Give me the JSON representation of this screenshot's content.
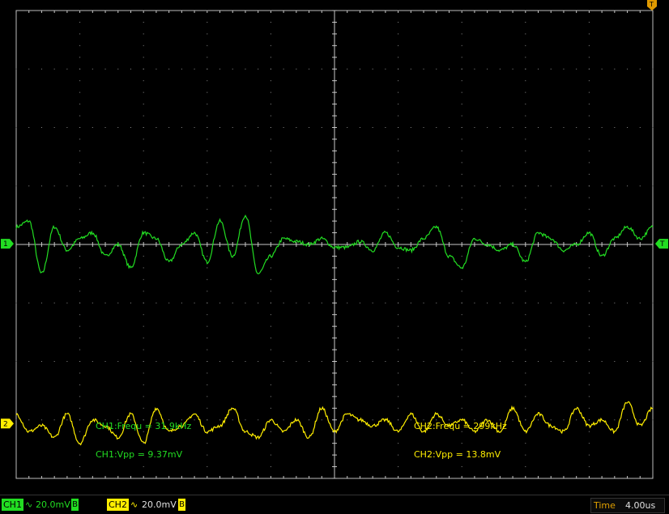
{
  "chart_data": {
    "type": "line",
    "title": "",
    "xlabel": "",
    "ylabel": "",
    "time_per_div": "4.00us",
    "x_divisions": 10,
    "y_divisions": 8,
    "grid": "dotted",
    "series": [
      {
        "name": "CH1",
        "color": "#22dd22",
        "marker_label": "1",
        "scale": "20.0mV",
        "coupling": "∿",
        "bw_limit": "B",
        "frequency": "31.9kHz",
        "vpp": "9.37mV",
        "x": [
          0,
          0.2,
          0.4,
          0.6,
          0.8,
          1,
          1.2,
          1.4,
          1.6,
          1.8,
          2,
          2.2,
          2.4,
          2.6,
          2.8,
          3,
          3.2,
          3.4,
          3.6,
          3.8,
          4,
          4.2,
          4.4,
          4.6,
          4.8,
          5,
          5.2,
          5.4,
          5.6,
          5.8,
          6,
          6.2,
          6.4,
          6.6,
          6.8,
          7,
          7.2,
          7.4,
          7.6,
          7.8,
          8,
          8.2,
          8.4,
          8.6,
          8.8,
          9,
          9.2,
          9.4,
          9.6,
          9.8,
          10
        ],
        "y": [
          0.3,
          0.4,
          -0.5,
          0.3,
          -0.1,
          0.1,
          0.2,
          -0.2,
          0.0,
          -0.4,
          0.2,
          0.1,
          -0.3,
          0.0,
          0.2,
          -0.3,
          0.4,
          -0.2,
          0.5,
          -0.5,
          -0.2,
          0.1,
          0.05,
          0.0,
          0.1,
          -0.05,
          -0.05,
          0.05,
          -0.1,
          0.2,
          -0.05,
          -0.1,
          0.1,
          0.3,
          -0.2,
          -0.4,
          0.1,
          0.0,
          -0.1,
          0.0,
          -0.3,
          0.2,
          0.1,
          -0.1,
          0.0,
          0.2,
          -0.2,
          0.1,
          0.3,
          0.1,
          0.3
        ]
      },
      {
        "name": "CH2",
        "color": "#ffee00",
        "marker_label": "2",
        "scale": "20.0mV",
        "coupling": "∿",
        "bw_limit": "B",
        "frequency": "299kHz",
        "vpp": "13.8mV",
        "x": [
          0,
          0.2,
          0.4,
          0.6,
          0.8,
          1,
          1.2,
          1.4,
          1.6,
          1.8,
          2,
          2.2,
          2.4,
          2.6,
          2.8,
          3,
          3.2,
          3.4,
          3.6,
          3.8,
          4,
          4.2,
          4.4,
          4.6,
          4.8,
          5,
          5.2,
          5.4,
          5.6,
          5.8,
          6,
          6.2,
          6.4,
          6.6,
          6.8,
          7,
          7.2,
          7.4,
          7.6,
          7.8,
          8,
          8.2,
          8.4,
          8.6,
          8.8,
          9,
          9.2,
          9.4,
          9.6,
          9.8,
          10
        ],
        "y": [
          -2.9,
          -3.2,
          -3.1,
          -3.3,
          -2.9,
          -3.4,
          -3.0,
          -3.1,
          -3.3,
          -2.9,
          -3.4,
          -2.8,
          -3.2,
          -3.1,
          -2.9,
          -3.2,
          -3.1,
          -2.8,
          -3.2,
          -3.3,
          -3.0,
          -3.2,
          -3.0,
          -3.3,
          -2.8,
          -3.2,
          -2.9,
          -3.0,
          -3.1,
          -3.0,
          -3.2,
          -2.9,
          -3.2,
          -2.9,
          -3.1,
          -3.0,
          -3.2,
          -3.0,
          -3.2,
          -2.8,
          -3.2,
          -2.9,
          -3.1,
          -3.2,
          -2.8,
          -3.1,
          -3.0,
          -3.2,
          -2.7,
          -3.1,
          -2.8
        ]
      }
    ]
  },
  "measurements": {
    "ch1_freq": "CH1:Frequ = 31.9kHz",
    "ch1_vpp": "CH1:Vpp = 9.37mV",
    "ch2_freq": "CH2:Frequ = 299kHz",
    "ch2_vpp": "CH2:Vpp = 13.8mV"
  },
  "status": {
    "ch1_label": "CH1",
    "ch1_coupling": "∿",
    "ch1_scale": "20.0mV",
    "ch1_bw": "B",
    "ch2_label": "CH2",
    "ch2_coupling": "∿",
    "ch2_scale": "20.0mV",
    "ch2_bw": "B",
    "time_label": "Time",
    "time_value": "4.00us"
  },
  "markers": {
    "trigger_level": "T",
    "trigger_position": "T"
  },
  "colors": {
    "background": "#000000",
    "grid": "#8a8a8a",
    "axes": "#c8c8c8",
    "ch1": "#22dd22",
    "ch2": "#ffee00",
    "time_label": "#e0a000",
    "trigger": "#e09a00"
  }
}
